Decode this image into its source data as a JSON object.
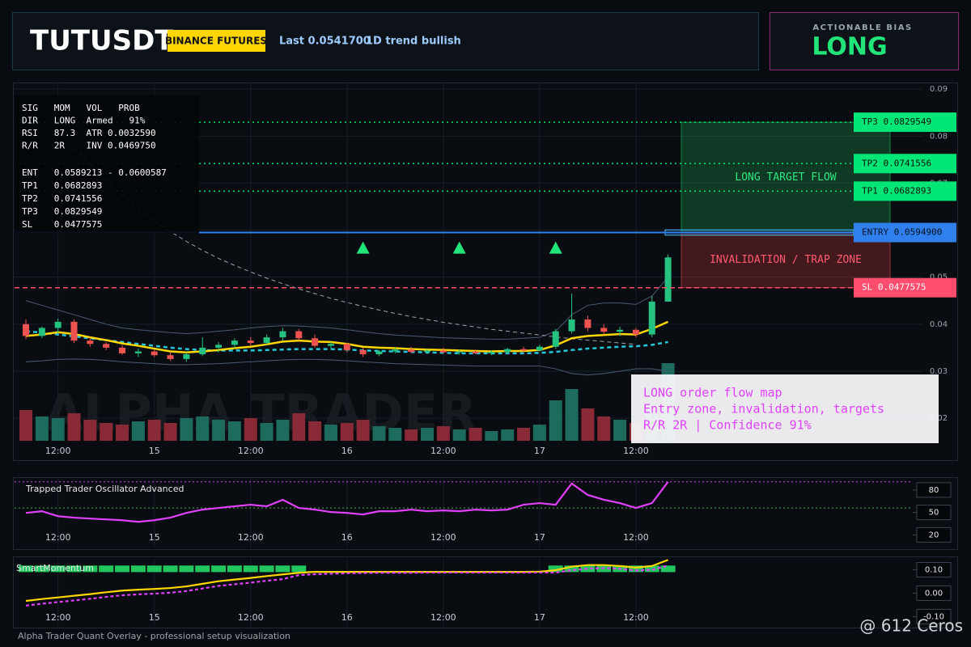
{
  "header": {
    "title": "TUTUSDT",
    "badge": "BINANCE FUTURES",
    "last": "Last 0.0541700",
    "trend": "1D trend bullish"
  },
  "bias": {
    "label": "ACTIONABLE BIAS",
    "value": "LONG"
  },
  "stats_panel": {
    "lines": [
      "SIG   MOM   VOL   PROB",
      "DIR   LONG  Armed   91%",
      "RSI   87.3  ATR 0.0032590",
      "R/R   2R    INV 0.0469750"
    ],
    "level_lines": [
      "ENT   0.0589213 - 0.0600587",
      "TP1   0.0682893",
      "TP2   0.0741556",
      "TP3   0.0829549",
      "SL    0.0477575"
    ]
  },
  "overlay_note": [
    "LONG order flow map",
    "Entry zone, invalidation, targets",
    "R/R 2R | Confidence 91%"
  ],
  "watermark": "ALPHA TRADER",
  "footer": "Alpha Trader Quant Overlay - professional setup visualization",
  "credit": "@ 612 Ceros",
  "chart_data": [
    {
      "type": "candlestick",
      "categories": [
        null,
        null,
        "12:00",
        null,
        null,
        null,
        null,
        null,
        "15",
        null,
        null,
        null,
        null,
        null,
        "12:00",
        null,
        null,
        null,
        null,
        null,
        "16",
        null,
        null,
        null,
        null,
        null,
        "12:00",
        null,
        null,
        null,
        null,
        null,
        "17",
        null,
        null,
        null,
        null,
        null,
        "12:00",
        null,
        null
      ],
      "open": [
        0.04,
        0.0375,
        0.0392,
        0.0405,
        0.0365,
        0.0358,
        0.035,
        0.0338,
        0.0342,
        0.0334,
        0.0326,
        0.0336,
        0.035,
        0.0356,
        0.0365,
        0.036,
        0.0372,
        0.0385,
        0.037,
        0.0354,
        0.0358,
        0.0345,
        0.0336,
        0.0342,
        0.0346,
        0.0341,
        0.0344,
        0.034,
        0.0342,
        0.0338,
        0.0341,
        0.0347,
        0.0344,
        0.0352,
        0.0385,
        0.041,
        0.0392,
        0.0384,
        0.0388,
        0.0378,
        0.0448
      ],
      "high": [
        0.041,
        0.0395,
        0.0412,
        0.041,
        0.0372,
        0.0362,
        0.0355,
        0.0348,
        0.0346,
        0.034,
        0.034,
        0.0372,
        0.0362,
        0.037,
        0.0372,
        0.0378,
        0.0392,
        0.039,
        0.0378,
        0.0362,
        0.036,
        0.035,
        0.0345,
        0.035,
        0.0352,
        0.0348,
        0.035,
        0.0346,
        0.0346,
        0.0344,
        0.035,
        0.0352,
        0.0356,
        0.039,
        0.0465,
        0.0418,
        0.04,
        0.0395,
        0.0392,
        0.046,
        0.0548
      ],
      "low": [
        0.0368,
        0.037,
        0.038,
        0.036,
        0.0352,
        0.0345,
        0.0335,
        0.033,
        0.033,
        0.0322,
        0.032,
        0.0332,
        0.034,
        0.0348,
        0.0355,
        0.0356,
        0.0365,
        0.0365,
        0.035,
        0.0348,
        0.034,
        0.033,
        0.0332,
        0.0338,
        0.0338,
        0.0336,
        0.0338,
        0.0335,
        0.0336,
        0.0334,
        0.0338,
        0.034,
        0.0342,
        0.0348,
        0.038,
        0.0385,
        0.0378,
        0.0375,
        0.0372,
        0.0372,
        0.0448
      ],
      "close": [
        0.0375,
        0.0392,
        0.0405,
        0.0365,
        0.0358,
        0.035,
        0.0338,
        0.0342,
        0.0334,
        0.0326,
        0.0336,
        0.035,
        0.0356,
        0.0365,
        0.036,
        0.0372,
        0.0385,
        0.037,
        0.0354,
        0.0358,
        0.0345,
        0.0336,
        0.0342,
        0.0346,
        0.0341,
        0.0344,
        0.034,
        0.0342,
        0.0338,
        0.0341,
        0.0347,
        0.0344,
        0.0352,
        0.0385,
        0.041,
        0.0392,
        0.0384,
        0.0388,
        0.0378,
        0.0448,
        0.0542
      ],
      "volume": [
        38,
        30,
        28,
        34,
        26,
        22,
        20,
        24,
        26,
        22,
        28,
        30,
        26,
        24,
        28,
        22,
        26,
        34,
        24,
        20,
        22,
        26,
        18,
        16,
        14,
        16,
        18,
        14,
        16,
        12,
        14,
        16,
        20,
        50,
        64,
        40,
        30,
        26,
        22,
        40,
        96
      ],
      "volume_lim": [
        0,
        100
      ],
      "up_color": "#26c281",
      "down_color": "#ef5350",
      "volume_up_color": "#1d6b5c",
      "volume_down_color": "#8a2a36",
      "overlays": [
        {
          "color": "#4a5a70",
          "width": 1,
          "dash": false,
          "values": [
            0.045,
            0.044,
            0.043,
            0.042,
            0.041,
            0.04,
            0.0392,
            0.0388,
            0.0385,
            0.0382,
            0.038,
            0.0382,
            0.0385,
            0.0388,
            0.0392,
            0.0395,
            0.0397,
            0.0396,
            0.0394,
            0.0392,
            0.0388,
            0.0384,
            0.038,
            0.0377,
            0.0375,
            0.0373,
            0.0371,
            0.037,
            0.0369,
            0.0368,
            0.0368,
            0.037,
            0.0372,
            0.0385,
            0.042,
            0.044,
            0.0445,
            0.0445,
            0.0442,
            0.046,
            0.05
          ]
        },
        {
          "color": "#4a5a70",
          "width": 1,
          "dash": false,
          "values": [
            0.032,
            0.0322,
            0.0325,
            0.0326,
            0.0325,
            0.0323,
            0.032,
            0.0318,
            0.0316,
            0.0314,
            0.0314,
            0.0315,
            0.0316,
            0.0318,
            0.032,
            0.0322,
            0.0324,
            0.0325,
            0.0325,
            0.0324,
            0.0322,
            0.032,
            0.0318,
            0.0316,
            0.0315,
            0.0314,
            0.0313,
            0.0312,
            0.0311,
            0.0311,
            0.0311,
            0.0311,
            0.0311,
            0.0305,
            0.0295,
            0.0292,
            0.0295,
            0.03,
            0.0305,
            0.0305,
            0.03
          ]
        },
        {
          "color": "#9ca3af",
          "width": 1,
          "dash": true,
          "values": [
            null,
            null,
            null,
            0.0775,
            0.074,
            0.0705,
            0.0675,
            0.0645,
            0.062,
            0.0597,
            0.0576,
            0.0557,
            0.054,
            0.0525,
            0.0511,
            0.0498,
            0.0486,
            0.0475,
            0.0465,
            0.0455,
            0.0446,
            0.0438,
            0.043,
            0.0423,
            0.0416,
            0.041,
            0.0404,
            0.0399,
            0.0394,
            0.0389,
            0.0385,
            0.0381,
            0.0377,
            0.0373,
            0.0369,
            0.0366,
            0.0363,
            0.036,
            0.0357,
            null,
            null
          ]
        },
        {
          "color": "#26c6da",
          "width": 2.5,
          "dash": true,
          "values": [
            0.0385,
            0.0382,
            0.0378,
            0.0374,
            0.037,
            0.0366,
            0.0362,
            0.0358,
            0.0354,
            0.035,
            0.0347,
            0.0345,
            0.0344,
            0.0344,
            0.0344,
            0.0345,
            0.0346,
            0.0347,
            0.0347,
            0.0347,
            0.0346,
            0.0344,
            0.0343,
            0.0342,
            0.0341,
            0.034,
            0.0339,
            0.0338,
            0.0338,
            0.0338,
            0.0338,
            0.0338,
            0.0339,
            0.0341,
            0.0345,
            0.0348,
            0.035,
            0.0352,
            0.0353,
            0.0356,
            0.0362
          ]
        },
        {
          "color": "#ffd600",
          "width": 2.5,
          "dash": false,
          "values": [
            0.0375,
            0.0378,
            0.0383,
            0.0379,
            0.0372,
            0.0366,
            0.0359,
            0.0354,
            0.0348,
            0.0342,
            0.034,
            0.0342,
            0.0345,
            0.0349,
            0.0352,
            0.0357,
            0.0363,
            0.0365,
            0.0363,
            0.0362,
            0.0358,
            0.0352,
            0.035,
            0.0349,
            0.0347,
            0.0346,
            0.0345,
            0.0344,
            0.0343,
            0.0342,
            0.0343,
            0.0343,
            0.0345,
            0.0355,
            0.037,
            0.0375,
            0.0377,
            0.0379,
            0.0378,
            0.039,
            0.0405
          ]
        }
      ],
      "signals": {
        "color": "#22e57a",
        "values": [
          null,
          null,
          null,
          null,
          null,
          null,
          null,
          null,
          null,
          null,
          null,
          null,
          null,
          null,
          null,
          null,
          null,
          null,
          null,
          null,
          null,
          0.0562,
          null,
          null,
          null,
          null,
          null,
          0.0562,
          null,
          null,
          null,
          null,
          null,
          0.0562,
          null,
          null,
          null,
          null,
          null,
          null,
          null
        ]
      },
      "levels": [
        {
          "value": 0.0829549,
          "label": "TP3 0.0829549",
          "style": "dotted",
          "color": "#00e676",
          "label_text_color": "#04140a"
        },
        {
          "value": 0.0741556,
          "label": "TP2 0.0741556",
          "style": "dotted",
          "color": "#00e676",
          "label_text_color": "#04140a"
        },
        {
          "value": 0.0682893,
          "label": "TP1 0.0682893",
          "style": "dotted",
          "color": "#00e676",
          "label_text_color": "#04140a"
        },
        {
          "value": 0.05949,
          "label": "ENTRY 0.0594900",
          "style": "solid",
          "color": "#2f80ed",
          "label_text_color": "#04101f"
        },
        {
          "value": 0.0477575,
          "label": "SL 0.0477575",
          "style": "dashed",
          "color": "#ff4d6d",
          "label_text_color": "#ffffff"
        }
      ],
      "entry_zone": [
        0.0589213,
        0.0600587
      ],
      "zones": [
        {
          "label": "LONG TARGET FLOW",
          "from": 0.0829549,
          "to": 0.05949,
          "color": "#22c55e",
          "text_color": "#2ee67f"
        },
        {
          "label": "INVALIDATION / TRAP ZONE",
          "from": 0.05949,
          "to": 0.0477575,
          "color": "#ef4444",
          "text_color": "#ff5a6e"
        }
      ],
      "ylim": [
        0.0152,
        0.0914
      ],
      "yticks": [
        0.02,
        0.03,
        0.04,
        0.05,
        0.06,
        0.07,
        0.08,
        0.09
      ],
      "grid": true
    },
    {
      "type": "line",
      "title": "Trapped Trader Oscillator Advanced",
      "series": [
        {
          "color": "#e040fb",
          "values": [
            49.4,
            51.6,
            45,
            43,
            41.8,
            40.7,
            39.6,
            37.4,
            39.6,
            43,
            49.4,
            53.8,
            56,
            58.2,
            60.3,
            58.2,
            66.9,
            56,
            53.8,
            50.5,
            49.4,
            47.3,
            51.6,
            51.6,
            53.8,
            51.6,
            52.7,
            51.6,
            53.8,
            52.7,
            53.8,
            60.3,
            62.5,
            60.3,
            88.7,
            73.4,
            66.9,
            62.5,
            56,
            62.5,
            90.9
          ]
        }
      ],
      "levels": [
        {
          "value": 91,
          "color": "#e040fb"
        },
        {
          "value": 56,
          "color": "#4caf50"
        }
      ],
      "ylim": [
        2,
        95
      ],
      "yticks": [
        20,
        50,
        80
      ]
    },
    {
      "type": "line",
      "title": "SmartMomentum",
      "histogram": {
        "color": "#22c55e",
        "base": 0.09,
        "values": [
          0.118,
          0.118,
          0.118,
          0.118,
          0.118,
          0.118,
          0.118,
          0.118,
          0.118,
          0.118,
          0.118,
          0.118,
          0.118,
          0.118,
          0.118,
          0.118,
          0.118,
          0.118,
          0.094,
          0.094,
          0.094,
          0.094,
          0.094,
          0.094,
          0.094,
          0.094,
          0.094,
          0.094,
          0.094,
          0.094,
          0.094,
          0.094,
          0.094,
          0.118,
          0.118,
          0.118,
          0.118,
          0.118,
          0.118,
          0.118,
          0.118
        ]
      },
      "series": [
        {
          "color": "#ffd600",
          "dash": false,
          "values": [
            -0.033,
            -0.025,
            -0.018,
            -0.011,
            -0.004,
            0.004,
            0.011,
            0.015,
            0.018,
            0.022,
            0.029,
            0.04,
            0.051,
            0.058,
            0.065,
            0.073,
            0.08,
            0.087,
            0.091,
            0.091,
            0.091,
            0.091,
            0.091,
            0.091,
            0.091,
            0.091,
            0.091,
            0.091,
            0.091,
            0.091,
            0.091,
            0.091,
            0.092,
            0.098,
            0.113,
            0.12,
            0.12,
            0.116,
            0.109,
            0.116,
            0.142
          ]
        },
        {
          "color": "#e040fb",
          "dash": true,
          "values": [
            -0.053,
            -0.045,
            -0.038,
            -0.031,
            -0.024,
            -0.016,
            -0.009,
            -0.005,
            -0.002,
            0.002,
            0.009,
            0.02,
            0.031,
            0.038,
            0.045,
            0.053,
            0.06,
            0.077,
            0.081,
            0.083,
            0.085,
            0.086,
            0.087,
            0.087,
            0.087,
            0.088,
            0.088,
            0.088,
            0.088,
            0.088,
            0.088,
            0.088,
            0.088,
            0.088,
            0.098,
            0.105,
            0.107,
            0.104,
            0.097,
            0.1,
            0.118
          ]
        }
      ],
      "ylim": [
        -0.14,
        0.15
      ],
      "yticks": [
        {
          "value": 0.1,
          "label": "0.10"
        },
        {
          "value": 0,
          "label": "0.00"
        },
        {
          "value": -0.1,
          "label": "-0.10"
        }
      ]
    }
  ]
}
